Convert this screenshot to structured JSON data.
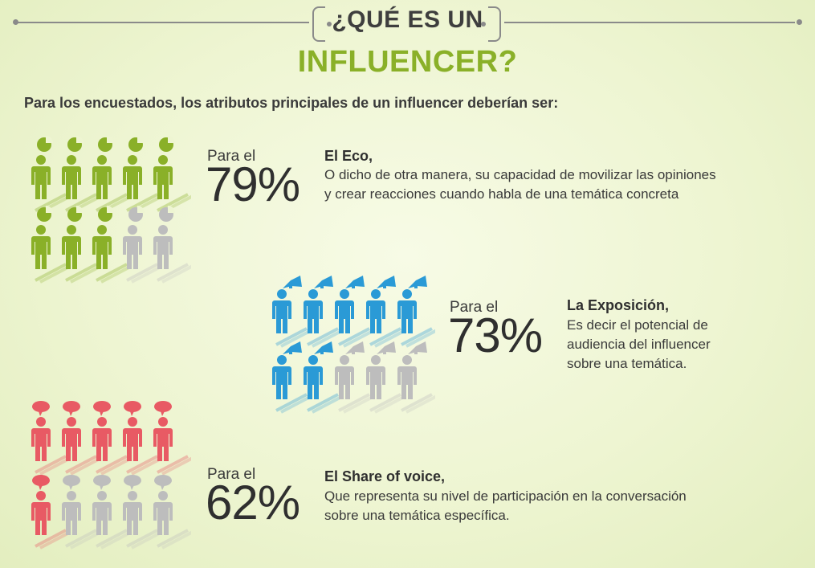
{
  "title": {
    "line1": "¿QUÉ ES UN",
    "line2": "INFLUENCER?"
  },
  "intro": "Para los encuestados, los atributos principales de un influencer deberían ser:",
  "colors": {
    "green": "#8ab028",
    "blue": "#2a9ad6",
    "red": "#e85a64",
    "gray": "#bdbdbd"
  },
  "stats": [
    {
      "para": "Para el",
      "percent": "79%",
      "value": 79,
      "heading": "El Eco,",
      "desc1": "O dicho de otra manera, su capacidad de movilizar las opiniones",
      "desc2": "y crear reacciones cuando habla de una temática concreta",
      "icon": "pie-chart-person-icon",
      "filled": 8,
      "total": 10
    },
    {
      "para": "Para el",
      "percent": "73%",
      "value": 73,
      "heading": "La Exposición,",
      "desc1": "Es decir el potencial de",
      "desc2": "audiencia del influencer",
      "desc3": "sobre una temática.",
      "icon": "megaphone-person-icon",
      "filled": 7,
      "total": 10
    },
    {
      "para": "Para el",
      "percent": "62%",
      "value": 62,
      "heading": "El Share of voice,",
      "desc1": "Que representa su nivel de participación en la conversación",
      "desc2": "sobre una temática específica.",
      "icon": "speech-bubble-person-icon",
      "filled": 6,
      "total": 10
    }
  ]
}
